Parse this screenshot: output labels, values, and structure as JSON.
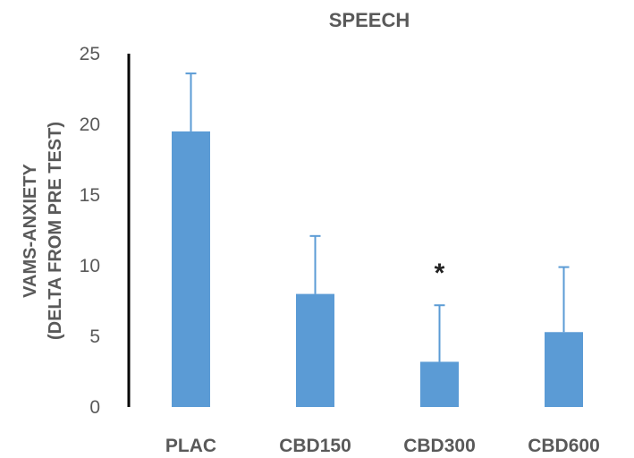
{
  "chart_data": {
    "type": "bar",
    "title": "SPEECH",
    "ylabel": "VAMS-ANXIETY",
    "ylabel_sub": "(DELTA FROM PRE TEST)",
    "xlabel": "",
    "categories": [
      "PLAC",
      "CBD150",
      "CBD300",
      "CBD600"
    ],
    "values": [
      19.5,
      8.0,
      3.2,
      5.3
    ],
    "error_upper": [
      4.1,
      4.1,
      4.0,
      4.6
    ],
    "ylim": [
      0,
      25
    ],
    "yticks": [
      "0",
      "5",
      "10",
      "15",
      "20",
      "25"
    ],
    "annotations": [
      {
        "category": "CBD300",
        "text": "*"
      }
    ],
    "bar_color": "#5b9bd5",
    "axis_color": "#000000",
    "text_color": "#595959",
    "grid": false
  }
}
